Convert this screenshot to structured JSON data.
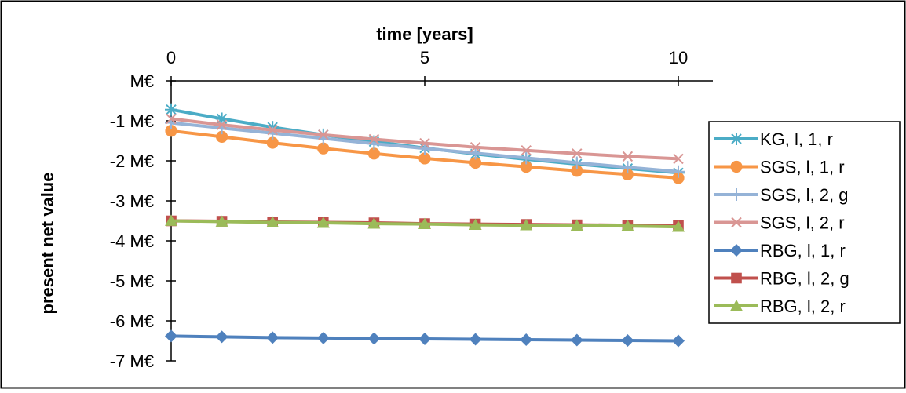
{
  "chart_data": {
    "type": "line",
    "xlabel": "time [years]",
    "ylabel": "present net value",
    "xlim": [
      0,
      10
    ],
    "ylim": [
      -7,
      0
    ],
    "x_ticks": [
      0,
      5,
      10
    ],
    "x_tick_labels": [
      "0",
      "5",
      "10"
    ],
    "y_ticks": [
      0,
      -1,
      -2,
      -3,
      -4,
      -5,
      -6,
      -7
    ],
    "y_tick_labels": [
      "M€",
      "-1 M€",
      "-2 M€",
      "-3 M€",
      "-4 M€",
      "-5 M€",
      "-6 M€",
      "-7 M€"
    ],
    "x_axis_position": "top",
    "grid": false,
    "legend_position": "right",
    "x": [
      0,
      1,
      2,
      3,
      4,
      5,
      6,
      7,
      8,
      9,
      10
    ],
    "series": [
      {
        "name": "KG, l, 1, r",
        "color": "#4bacc6",
        "marker": "asterisk",
        "values": [
          -0.72,
          -0.95,
          -1.16,
          -1.35,
          -1.52,
          -1.68,
          -1.83,
          -1.96,
          -2.08,
          -2.19,
          -2.3
        ]
      },
      {
        "name": "SGS, l, 1, r",
        "color": "#f79646",
        "marker": "circle",
        "values": [
          -1.25,
          -1.4,
          -1.55,
          -1.69,
          -1.82,
          -1.94,
          -2.05,
          -2.15,
          -2.25,
          -2.34,
          -2.43
        ]
      },
      {
        "name": "SGS, l, 2, g",
        "color": "#95b3d7",
        "marker": "plus",
        "values": [
          -1.05,
          -1.18,
          -1.31,
          -1.44,
          -1.57,
          -1.69,
          -1.81,
          -1.93,
          -2.05,
          -2.16,
          -2.27
        ]
      },
      {
        "name": "SGS, l, 2, r",
        "color": "#d99694",
        "marker": "cross",
        "values": [
          -0.95,
          -1.1,
          -1.23,
          -1.35,
          -1.46,
          -1.56,
          -1.66,
          -1.74,
          -1.82,
          -1.89,
          -1.95
        ]
      },
      {
        "name": "RBG, l, 1, r",
        "color": "#4f81bd",
        "marker": "diamond",
        "values": [
          -6.38,
          -6.4,
          -6.42,
          -6.43,
          -6.44,
          -6.45,
          -6.46,
          -6.47,
          -6.48,
          -6.49,
          -6.5
        ]
      },
      {
        "name": "RBG, l, 2, g",
        "color": "#c0504d",
        "marker": "square",
        "values": [
          -3.5,
          -3.51,
          -3.53,
          -3.54,
          -3.55,
          -3.57,
          -3.58,
          -3.59,
          -3.6,
          -3.61,
          -3.62
        ]
      },
      {
        "name": "RBG, l, 2, r",
        "color": "#9bbb59",
        "marker": "triangle",
        "values": [
          -3.5,
          -3.52,
          -3.54,
          -3.55,
          -3.57,
          -3.58,
          -3.6,
          -3.61,
          -3.62,
          -3.63,
          -3.65
        ]
      }
    ]
  }
}
